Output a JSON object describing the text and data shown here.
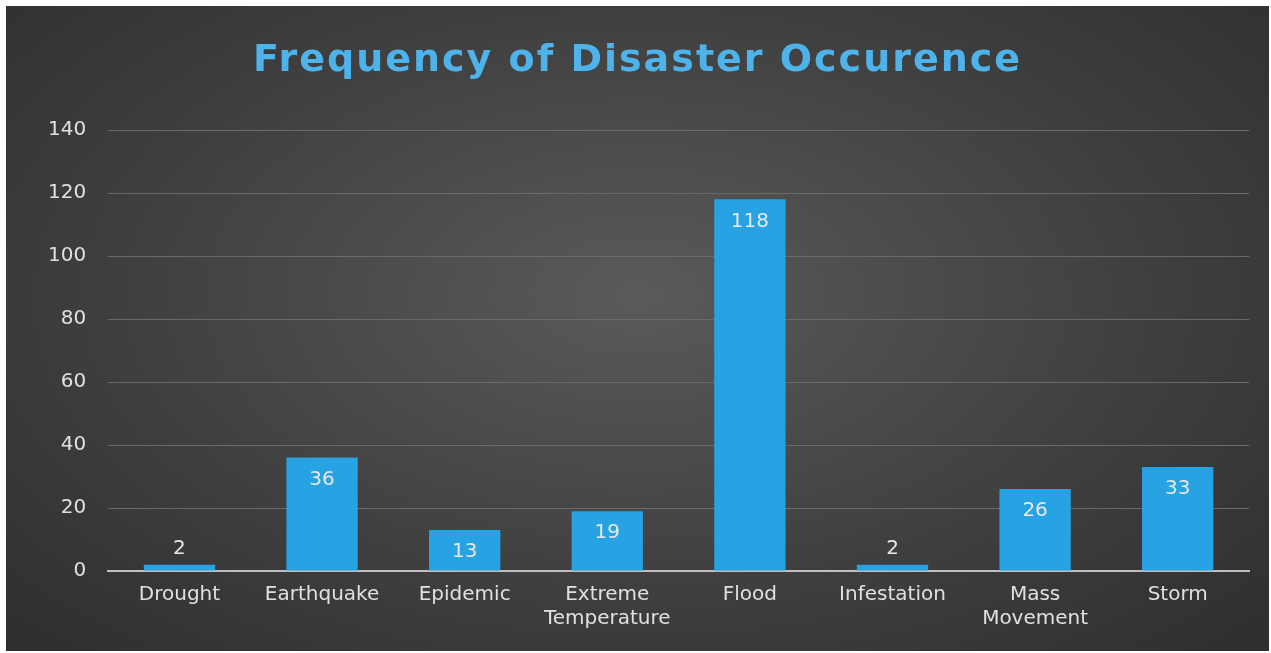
{
  "chart_data": {
    "type": "bar",
    "title": "Frequency of Disaster Occurence",
    "categories": [
      "Drought",
      "Earthquake",
      "Epidemic",
      "Extreme Temperature",
      "Flood",
      "Infestation",
      "Mass Movement",
      "Storm"
    ],
    "values": [
      2,
      36,
      13,
      19,
      118,
      2,
      26,
      33
    ],
    "color": "#27a2e2",
    "ylim": [
      0,
      140
    ],
    "yticks": [
      0,
      20,
      40,
      60,
      80,
      100,
      120,
      140
    ],
    "grid": "y",
    "legend": false,
    "data_labels": true
  }
}
